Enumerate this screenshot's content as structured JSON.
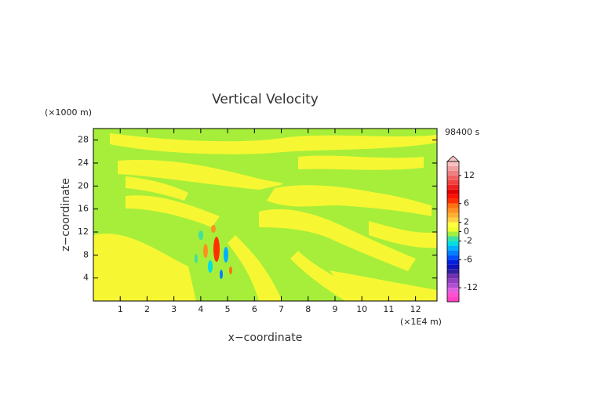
{
  "chart_data": {
    "type": "contour",
    "title": "Vertical Velocity",
    "x_label": "x−coordinate",
    "y_label": "z−coordinate",
    "x_unit": "(×1E4 m)",
    "y_unit": "(×1000 m)",
    "time_label": "98400 s",
    "xlim": [
      0,
      12.8
    ],
    "ylim": [
      0,
      30
    ],
    "xticks": [
      1,
      2,
      3,
      4,
      5,
      6,
      7,
      8,
      9,
      10,
      11,
      12
    ],
    "yticks": [
      4,
      8,
      12,
      16,
      20,
      24,
      28
    ],
    "colorbar": {
      "levels": [
        -15,
        -14,
        -13,
        -12,
        -11,
        -10,
        -9,
        -8,
        -7,
        -6,
        -5,
        -4,
        -3,
        -2,
        -1,
        0,
        1,
        2,
        3,
        4,
        5,
        6,
        7,
        8,
        9,
        10,
        11,
        12,
        13,
        14,
        15
      ],
      "colors": [
        "#ff40c0",
        "#ff50d0",
        "#e060e0",
        "#b050d0",
        "#9040c0",
        "#7030b0",
        "#3020a0",
        "#1010c0",
        "#0020e0",
        "#0050ff",
        "#0080ff",
        "#00b0ff",
        "#00e0e0",
        "#40e0a0",
        "#a0f040",
        "#f0ff30",
        "#ffff40",
        "#ffd040",
        "#ffb030",
        "#ff9020",
        "#ff7010",
        "#ff3000",
        "#ff1000",
        "#e00000",
        "#f02020",
        "#f04040",
        "#f06060",
        "#f08080",
        "#f0a0a0",
        "#f8c0c0"
      ],
      "ticks": [
        -12,
        -6,
        -2,
        0,
        2,
        6,
        12
      ]
    }
  }
}
